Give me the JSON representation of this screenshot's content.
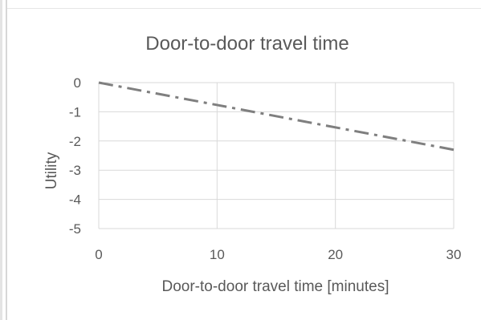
{
  "chart_data": {
    "type": "line",
    "title": "Door-to-door travel time",
    "xlabel": "Door-to-door travel time [minutes]",
    "ylabel": "Utility",
    "xlim": [
      0,
      30
    ],
    "ylim": [
      -5,
      0
    ],
    "x_ticks": [
      "0",
      "10",
      "20",
      "30"
    ],
    "y_ticks": [
      "0",
      "-1",
      "-2",
      "-3",
      "-4",
      "-5"
    ],
    "grid": true,
    "legend": "none",
    "series": [
      {
        "x": [
          0,
          30
        ],
        "y": [
          0,
          -2.3
        ],
        "color": "#7f7f7f",
        "line_style": "dash-dot"
      }
    ],
    "gridline_color": "#d9d9d9",
    "text_color": "#595959"
  }
}
